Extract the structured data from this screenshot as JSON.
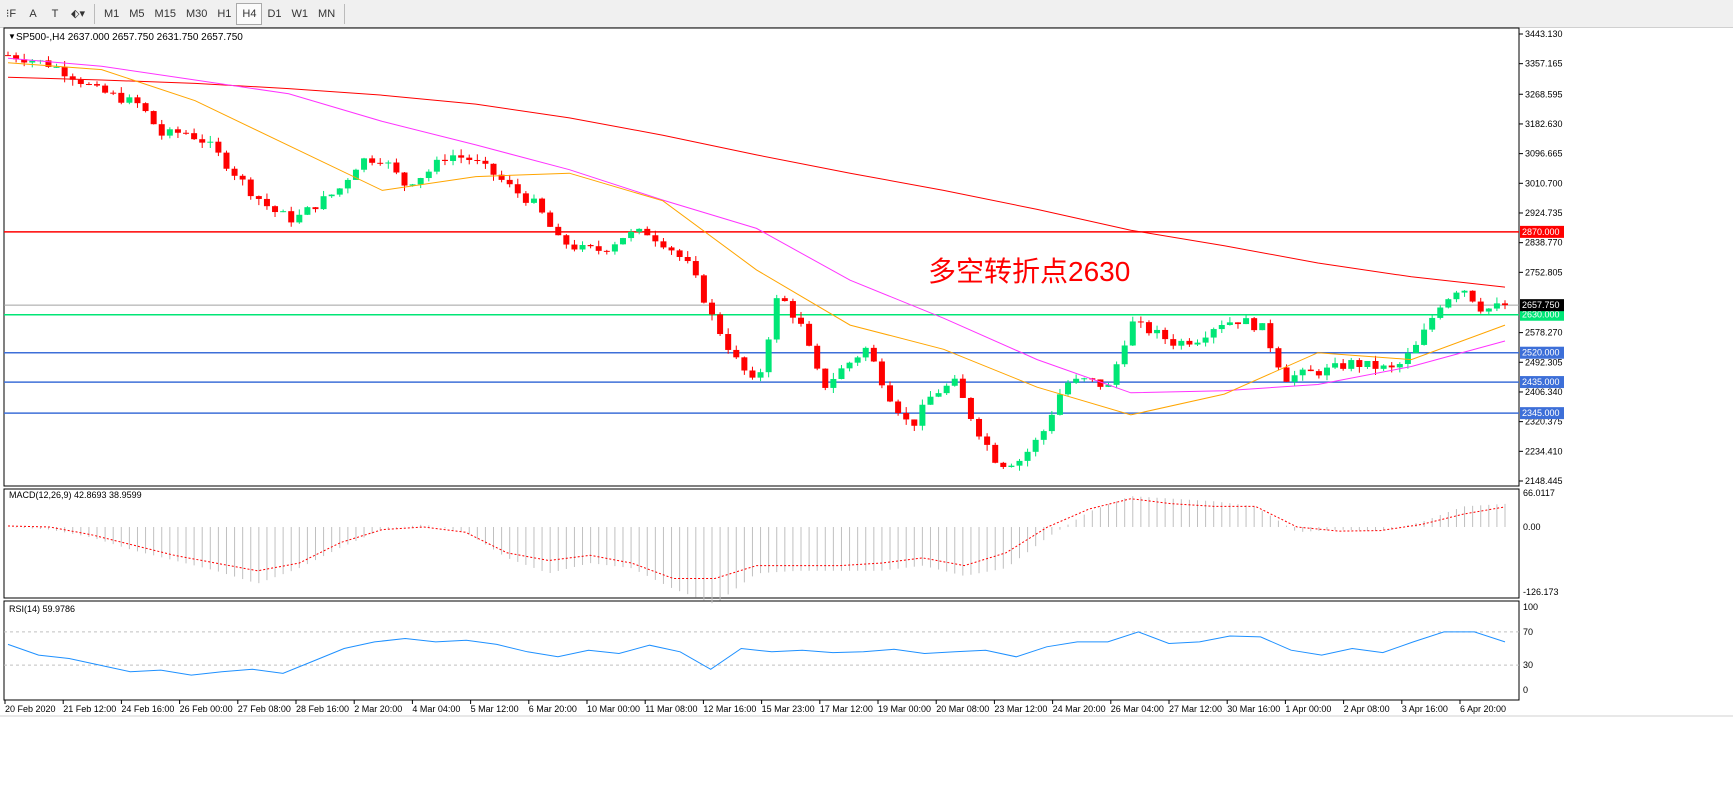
{
  "toolbar": {
    "tools": [
      {
        "name": "fibo-tool",
        "glyph": "⁝F"
      },
      {
        "name": "text-tool",
        "glyph": "A"
      },
      {
        "name": "text-label-tool",
        "glyph": "T"
      },
      {
        "name": "arrows-tool",
        "glyph": "⬖▾"
      }
    ],
    "timeframes": [
      "M1",
      "M5",
      "M15",
      "M30",
      "H1",
      "H4",
      "D1",
      "W1",
      "MN"
    ],
    "selected": "H4"
  },
  "chart_data": {
    "type": "candlestick",
    "symbol_label": "SP500-,H4  2637.000 2657.750 2631.750 2657.750",
    "annotation": "多空转折点2630",
    "ylim": [
      2148.445,
      3443.13
    ],
    "price_ticks": [
      "3443.130",
      "3357.165",
      "3268.595",
      "3182.630",
      "3096.665",
      "3010.700",
      "2924.735",
      "2838.770",
      "2752.805",
      "2578.270",
      "2492.305",
      "2406.340",
      "2320.375",
      "2234.410",
      "2148.445"
    ],
    "current_price": "2657.750",
    "hlines": [
      {
        "value": 2870,
        "label": "2870.000",
        "color": "#ff0000"
      },
      {
        "value": 2630,
        "label": "2630.000",
        "color": "#00e676"
      },
      {
        "value": 2520,
        "label": "2520.000",
        "color": "#3d6fd8"
      },
      {
        "value": 2435,
        "label": "2435.000",
        "color": "#3d6fd8"
      },
      {
        "value": 2345,
        "label": "2345.000",
        "color": "#3d6fd8"
      }
    ],
    "closes": [
      3382,
      3370,
      3353,
      3320,
      3280,
      3260,
      3237,
      3150,
      3160,
      3130,
      3062,
      2990,
      2932,
      2904,
      2950,
      2990,
      3078,
      3085,
      3008,
      3040,
      3095,
      3080,
      3040,
      2990,
      2947,
      2846,
      2820,
      2817,
      2860,
      2870,
      2830,
      2766,
      2621,
      2505,
      2418,
      2693,
      2600,
      2418,
      2480,
      2534,
      2400,
      2302,
      2400,
      2432,
      2302,
      2197,
      2210,
      2287,
      2432,
      2440,
      2420,
      2607,
      2580,
      2548,
      2560,
      2607,
      2615,
      2590,
      2447,
      2460,
      2470,
      2490,
      2480,
      2470,
      2540,
      2658,
      2716,
      2644,
      2657.75
    ],
    "ma_red": [
      3318,
      3310,
      3300,
      3285,
      3266,
      3240,
      3200,
      3150,
      3093,
      3040,
      2990,
      2935,
      2875,
      2830,
      2780,
      2740,
      2710
    ],
    "ma_magenta": [
      3373,
      3350,
      3310,
      3270,
      3190,
      3122,
      3050,
      2962,
      2880,
      2730,
      2620,
      2500,
      2404,
      2410,
      2428,
      2480,
      2554
    ],
    "ma_orange": [
      3360,
      3340,
      3250,
      3120,
      2990,
      3030,
      3040,
      2960,
      2760,
      2600,
      2530,
      2420,
      2340,
      2400,
      2520,
      2500,
      2600
    ],
    "macd": {
      "label": "MACD(12,26,9) 42.8693 38.9599",
      "ticks": [
        "66.0117",
        "0.00",
        "-126.173"
      ],
      "ylim": [
        -126.173,
        66.0117
      ],
      "hist": [
        0,
        -5,
        -20,
        -45,
        -65,
        -85,
        -110,
        -80,
        -40,
        -5,
        5,
        -10,
        -60,
        -90,
        -70,
        -80,
        -120,
        -150,
        -90,
        -85,
        -85,
        -85,
        -75,
        -95,
        -80,
        -20,
        30,
        60,
        55,
        50,
        40,
        -10,
        -5,
        -8,
        10,
        40,
        45
      ],
      "signal": [
        2,
        0,
        -15,
        -35,
        -55,
        -70,
        -85,
        -70,
        -30,
        -5,
        0,
        -10,
        -50,
        -65,
        -55,
        -70,
        -100,
        -100,
        -75,
        -75,
        -75,
        -70,
        -60,
        -75,
        -50,
        0,
        35,
        55,
        45,
        40,
        40,
        0,
        -8,
        -7,
        5,
        25,
        39
      ]
    },
    "rsi": {
      "label": "RSI(14) 59.9786",
      "ticks": [
        "100",
        "70",
        "30",
        "0"
      ],
      "levels": [
        70,
        30
      ],
      "values": [
        55,
        42,
        38,
        30,
        22,
        24,
        18,
        22,
        25,
        20,
        35,
        50,
        58,
        62,
        58,
        60,
        55,
        46,
        40,
        48,
        44,
        54,
        46,
        25,
        50,
        46,
        48,
        45,
        46,
        49,
        44,
        46,
        48,
        40,
        52,
        58,
        58,
        70,
        56,
        58,
        65,
        64,
        48,
        42,
        50,
        45,
        58,
        70,
        70,
        58
      ]
    },
    "dates": [
      "20 Feb 2020",
      "21 Feb 12:00",
      "24 Feb 16:00",
      "26 Feb 00:00",
      "27 Feb 08:00",
      "28 Feb 16:00",
      "2 Mar 20:00",
      "4 Mar 04:00",
      "5 Mar 12:00",
      "6 Mar 20:00",
      "10 Mar 00:00",
      "11 Mar 08:00",
      "12 Mar 16:00",
      "15 Mar 23:00",
      "17 Mar 12:00",
      "19 Mar 00:00",
      "20 Mar 08:00",
      "23 Mar 12:00",
      "24 Mar 20:00",
      "26 Mar 04:00",
      "27 Mar 12:00",
      "30 Mar 16:00",
      "1 Apr 00:00",
      "2 Apr 08:00",
      "3 Apr 16:00",
      "6 Apr 20:00"
    ],
    "colors": {
      "bull": "#00e676",
      "bear": "#ff0000",
      "ma_red": "#ff0000",
      "ma_magenta": "#ff33ff",
      "ma_orange": "#ffa500",
      "macd_signal": "#ff0000",
      "macd_hist": "#c0c0c0",
      "rsi": "#1e90ff"
    }
  }
}
